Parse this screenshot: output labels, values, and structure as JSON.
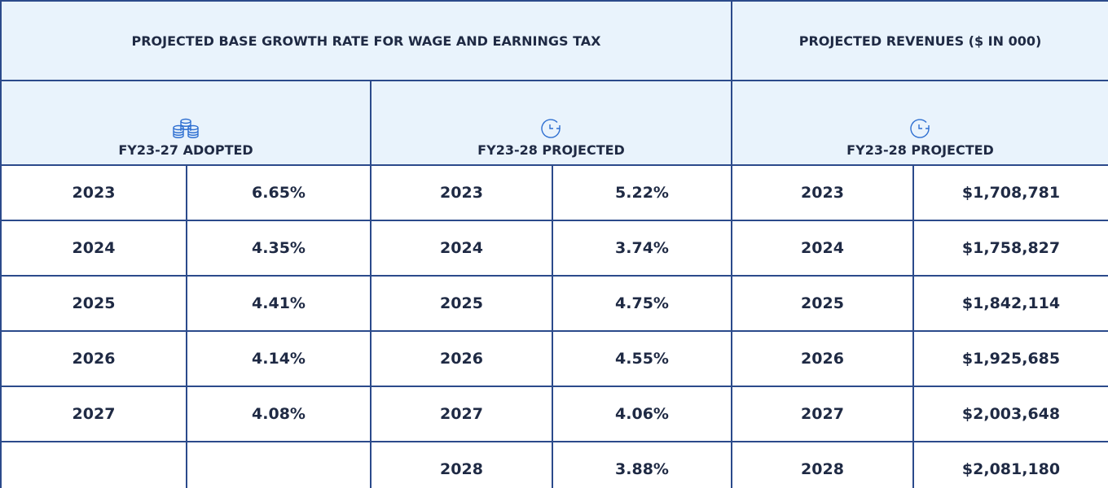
{
  "header": {
    "groups": [
      {
        "title": "PROJECTED BASE GROWTH RATE FOR WAGE AND EARNINGS TAX"
      },
      {
        "title": "PROJECTED REVENUES ($ IN 000)"
      }
    ],
    "subheaders": [
      {
        "label": "FY23-27 ADOPTED"
      },
      {
        "label": "FY23-28 PROJECTED"
      },
      {
        "label": "FY23-28 PROJECTED"
      }
    ]
  },
  "table": {
    "rows": [
      [
        "2023",
        "6.65%",
        "2023",
        "5.22%",
        "2023",
        "$1,708,781"
      ],
      [
        "2024",
        "4.35%",
        "2024",
        "3.74%",
        "2024",
        "$1,758,827"
      ],
      [
        "2025",
        "4.41%",
        "2025",
        "4.75%",
        "2025",
        "$1,842,114"
      ],
      [
        "2026",
        "4.14%",
        "2026",
        "4.55%",
        "2026",
        "$1,925,685"
      ],
      [
        "2027",
        "4.08%",
        "2027",
        "4.06%",
        "2027",
        "$2,003,648"
      ],
      [
        null,
        null,
        "2028",
        "3.88%",
        "2028",
        "$2,081,180"
      ]
    ]
  }
}
